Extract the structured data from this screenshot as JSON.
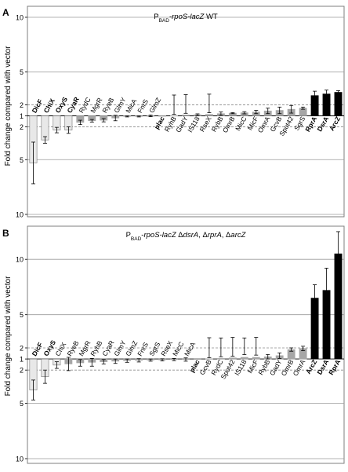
{
  "y_axis_label": "Fold change compared with vector",
  "colors": {
    "low_bar": "#e8e8e8",
    "mid_bar": "#a6a6a6",
    "high_bar": "#000000",
    "frame": "#7f7f7f",
    "grid": "#9a9a9a",
    "dashed": "#8a8a8a"
  },
  "chart_data": [
    {
      "type": "bar",
      "panel_label": "A",
      "title": "P_BAD-rpoS-lacZ WT",
      "title_parts": [
        {
          "text": "P",
          "style": "normal"
        },
        {
          "text": "BAD",
          "style": "sub"
        },
        {
          "text": "-",
          "style": "normal"
        },
        {
          "text": "rpoS-lacZ",
          "style": "italic"
        },
        {
          "text": " WT",
          "style": "normal"
        }
      ],
      "ylabel": "Fold change compared with vector",
      "yscale": "reciprocal (fold increase above 1, fold decrease below 1)",
      "ylim": [
        -10,
        10
      ],
      "yticks": [
        "10",
        "5",
        "2",
        "1",
        "2",
        "5",
        "10"
      ],
      "ytick_values": [
        10,
        5,
        2,
        1,
        -2,
        -5,
        -10
      ],
      "grid": "solid lines at 5 and 10; dashed lines at 2",
      "categories": [
        "DicF",
        "ChiX",
        "OxyS",
        "CyaR",
        "RydC",
        "MgrR",
        "RyeB",
        "GlmY",
        "MicA",
        "FnrS",
        "GlmZ",
        "plac",
        "RyhB",
        "GadY",
        "IS118",
        "RseX",
        "RybB",
        "OmrB",
        "MicC",
        "MicF",
        "OmrA",
        "GcvB",
        "Spot42",
        "SgrS",
        "RprA",
        "DsrA",
        "ArcZ"
      ],
      "bold": [
        "DicF",
        "ChiX",
        "OxyS",
        "CyaR",
        "plac",
        "RprA",
        "DsrA",
        "ArcZ"
      ],
      "values": [
        -5.3,
        -3.2,
        -2.3,
        -2.3,
        -1.6,
        -1.45,
        -1.4,
        -1.2,
        -1.05,
        -1.05,
        -1.0,
        1.0,
        1.02,
        1.08,
        1.1,
        1.13,
        1.2,
        1.25,
        1.28,
        1.35,
        1.45,
        1.5,
        1.6,
        1.7,
        2.85,
        3.0,
        3.15
      ],
      "errors": [
        1.9,
        0.3,
        0.25,
        0.3,
        0.2,
        0.12,
        0.15,
        0.25,
        0.05,
        0.05,
        0.08,
        0.0,
        0.12,
        0.15,
        0.08,
        0.15,
        0.15,
        0.05,
        0.1,
        0.15,
        0.25,
        0.3,
        0.35,
        0.1,
        0.4,
        0.35,
        0.15
      ],
      "bar_color": [
        "low",
        "low",
        "low",
        "low",
        "mid",
        "mid",
        "mid",
        "mid",
        "mid",
        "mid",
        "mid",
        "mid",
        "mid",
        "mid",
        "mid",
        "mid",
        "mid",
        "mid",
        "mid",
        "mid",
        "mid",
        "mid",
        "mid",
        "mid",
        "high",
        "high",
        "high"
      ]
    },
    {
      "type": "bar",
      "panel_label": "B",
      "title": "P_BAD-rpoS-lacZ ΔdsrA, ΔrprA, ΔarcZ",
      "title_parts": [
        {
          "text": "P",
          "style": "normal"
        },
        {
          "text": "BAD",
          "style": "sub"
        },
        {
          "text": "-",
          "style": "normal"
        },
        {
          "text": "rpoS-lacZ",
          "style": "italic"
        },
        {
          "text": " Δ",
          "style": "normal"
        },
        {
          "text": "dsrA",
          "style": "italic"
        },
        {
          "text": ", Δ",
          "style": "normal"
        },
        {
          "text": "rprA",
          "style": "italic"
        },
        {
          "text": ", Δ",
          "style": "normal"
        },
        {
          "text": "arcZ",
          "style": "italic"
        }
      ],
      "ylabel": "Fold change compared with vector",
      "yscale": "reciprocal (fold increase above 1, fold decrease below 1)",
      "ylim": [
        -10,
        12
      ],
      "yticks": [
        "10",
        "5",
        "2",
        "1",
        "2",
        "5",
        "10"
      ],
      "ytick_values": [
        10,
        5,
        2,
        1,
        -2,
        -5,
        -10
      ],
      "grid": "solid lines at 5 and 10; dashed lines at 2",
      "categories": [
        "DicF",
        "OxyS",
        "ChiX",
        "RyeB",
        "MgrR",
        "RyhB",
        "CyaR",
        "GlmY",
        "GlmZ",
        "FnrS",
        "SgrS",
        "RseX",
        "MicC",
        "MicA",
        "plac",
        "GcvB",
        "RydC",
        "Spot42",
        "IS118",
        "MicF",
        "RybB",
        "GadY",
        "OmrB",
        "OmrA",
        "ArcZ",
        "DsrA",
        "RprA"
      ],
      "bold": [
        "DicF",
        "OxyS",
        "plac",
        "ArcZ",
        "DsrA",
        "RprA"
      ],
      "values": [
        -3.8,
        -2.6,
        -1.55,
        -1.45,
        -1.35,
        -1.3,
        -1.25,
        -1.2,
        -1.15,
        -1.12,
        -1.1,
        -1.08,
        -1.05,
        -1.05,
        1.0,
        1.02,
        1.05,
        1.1,
        1.15,
        1.15,
        1.2,
        1.3,
        1.85,
        1.95,
        6.5,
        7.2,
        10.5
      ],
      "errors": [
        0.9,
        0.6,
        0.3,
        0.6,
        0.3,
        0.35,
        0.2,
        0.2,
        0.15,
        0.15,
        0.1,
        0.1,
        0.1,
        0.15,
        0.0,
        0.1,
        0.15,
        0.15,
        0.25,
        0.2,
        0.2,
        0.25,
        0.15,
        0.2,
        1.2,
        2.0,
        2.0
      ],
      "bar_color": [
        "low",
        "low",
        "low",
        "mid",
        "mid",
        "mid",
        "mid",
        "mid",
        "mid",
        "mid",
        "mid",
        "mid",
        "mid",
        "mid",
        "mid",
        "mid",
        "mid",
        "mid",
        "mid",
        "mid",
        "mid",
        "mid",
        "mid",
        "mid",
        "high",
        "high",
        "high"
      ]
    }
  ]
}
